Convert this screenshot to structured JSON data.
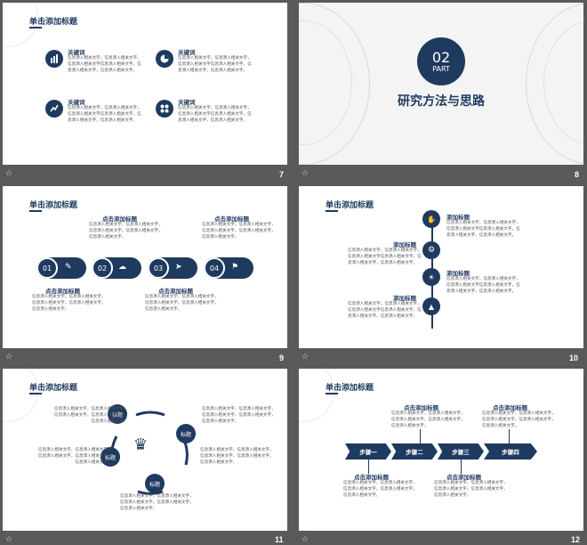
{
  "slide_numbers": [
    "7",
    "8",
    "9",
    "10",
    "11",
    "12"
  ],
  "placeholder": "信息添入相关文字，信息添入相关文字，\n信息添入相关文字信息添入相关文字，信\n息添入相关文字，信息添入相关文字，",
  "placeholder_short": "信息添入相关文字，信息添入相关文字，\n信息添入相关文字，信息添入相关文字，\n信息添入相关文字，",
  "slide7": {
    "title": "单击添加标题",
    "keyword": "关键词"
  },
  "slide8": {
    "number": "02",
    "part": "PART",
    "title": "研究方法与思路"
  },
  "slide9": {
    "title": "单击添加标题",
    "sub": "点击添加标题",
    "nums": [
      "01",
      "02",
      "03",
      "04"
    ]
  },
  "slide10": {
    "title": "单击添加标题",
    "sub": "添加标题"
  },
  "slide11": {
    "title": "单击添加标题",
    "node": "标题"
  },
  "slide12": {
    "title": "单击添加标题",
    "sub": "点击添加标题",
    "steps": [
      "步骤一",
      "步骤二",
      "步骤三",
      "步骤四"
    ]
  },
  "colors": {
    "accent": "#1f3a5f"
  }
}
